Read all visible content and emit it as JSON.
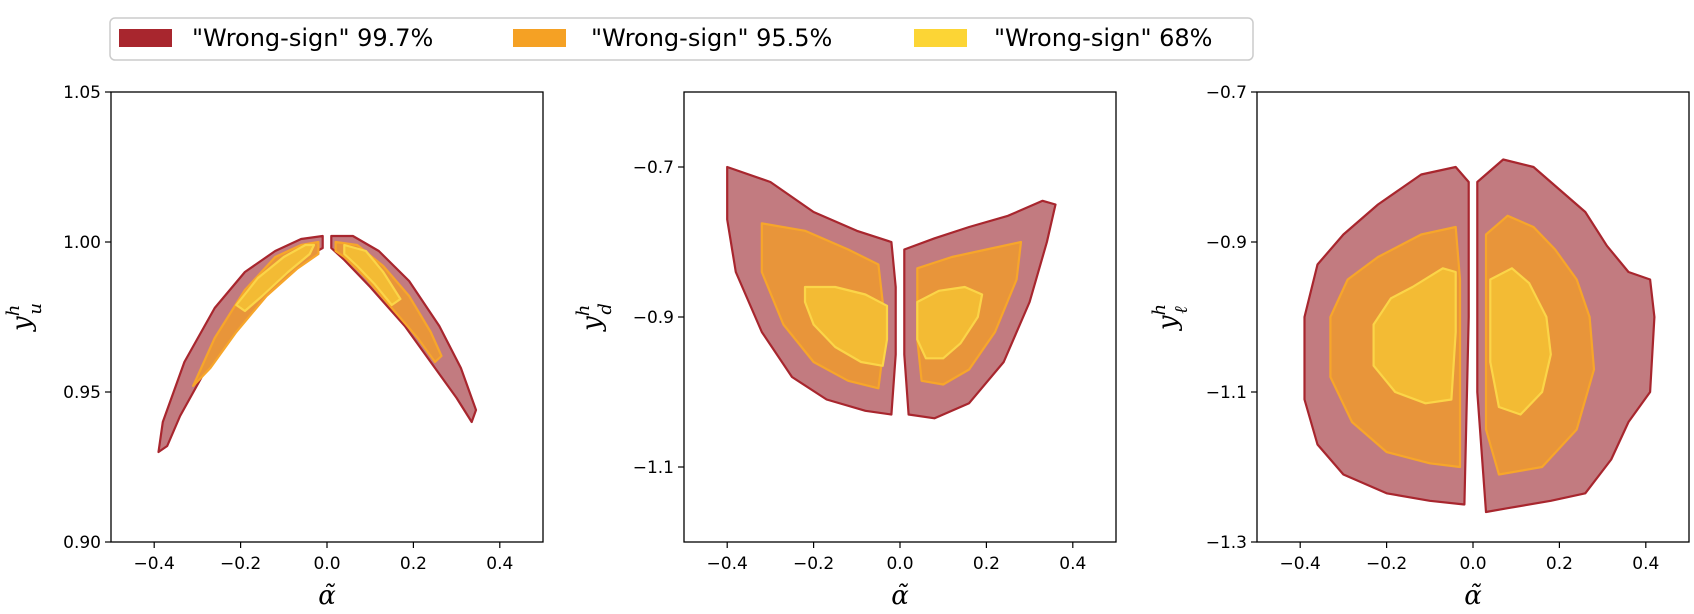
{
  "legend": {
    "placement": "top-center",
    "entries": [
      {
        "label": "\"Wrong-sign\" 99.7%",
        "color": "#a8262e"
      },
      {
        "label": "\"Wrong-sign\" 95.5%",
        "color": "#f5a124"
      },
      {
        "label": "\"Wrong-sign\" 68%",
        "color": "#fcd535"
      }
    ]
  },
  "colors": {
    "fill_997": "#c27b80",
    "edge_997": "#a8262e",
    "fill_955": "#e8953a",
    "edge_955": "#f7a62a",
    "fill_68": "#f3bb34",
    "edge_68": "#fbd548"
  },
  "chart_data": [
    {
      "type": "contour",
      "xlabel": "α̃",
      "ylabel_base": "y",
      "ylabel_sup": "h",
      "ylabel_sub": "u",
      "xlim": [
        -0.5,
        0.5
      ],
      "ylim": [
        0.9,
        1.05
      ],
      "xticks": [
        -0.4,
        -0.2,
        0.0,
        0.2,
        0.4
      ],
      "xtick_labels": [
        "−0.4",
        "−0.2",
        "0.0",
        "0.2",
        "0.4"
      ],
      "yticks": [
        0.9,
        0.95,
        1.0,
        1.05
      ],
      "ytick_labels": [
        "0.90",
        "0.95",
        "1.00",
        "1.05"
      ],
      "regions": [
        {
          "level": "99.7%",
          "polygons": [
            [
              [
                -0.39,
                0.93
              ],
              [
                -0.38,
                0.94
              ],
              [
                -0.33,
                0.96
              ],
              [
                -0.26,
                0.978
              ],
              [
                -0.19,
                0.99
              ],
              [
                -0.12,
                0.997
              ],
              [
                -0.06,
                1.001
              ],
              [
                -0.01,
                1.002
              ],
              [
                -0.01,
                0.998
              ],
              [
                -0.06,
                0.994
              ],
              [
                -0.14,
                0.984
              ],
              [
                -0.22,
                0.97
              ],
              [
                -0.29,
                0.955
              ],
              [
                -0.34,
                0.942
              ],
              [
                -0.37,
                0.932
              ]
            ],
            [
              [
                0.01,
                1.002
              ],
              [
                0.06,
                1.002
              ],
              [
                0.12,
                0.997
              ],
              [
                0.19,
                0.987
              ],
              [
                0.26,
                0.972
              ],
              [
                0.31,
                0.958
              ],
              [
                0.345,
                0.944
              ],
              [
                0.335,
                0.94
              ],
              [
                0.3,
                0.948
              ],
              [
                0.25,
                0.958
              ],
              [
                0.18,
                0.972
              ],
              [
                0.1,
                0.985
              ],
              [
                0.04,
                0.994
              ],
              [
                0.01,
                0.998
              ]
            ]
          ]
        },
        {
          "level": "95.5%",
          "polygons": [
            [
              [
                -0.31,
                0.952
              ],
              [
                -0.26,
                0.968
              ],
              [
                -0.19,
                0.984
              ],
              [
                -0.12,
                0.995
              ],
              [
                -0.06,
                0.999
              ],
              [
                -0.02,
                1.0
              ],
              [
                -0.02,
                0.996
              ],
              [
                -0.07,
                0.991
              ],
              [
                -0.14,
                0.982
              ],
              [
                -0.21,
                0.97
              ],
              [
                -0.27,
                0.958
              ]
            ],
            [
              [
                0.02,
                1.0
              ],
              [
                0.07,
                0.999
              ],
              [
                0.13,
                0.992
              ],
              [
                0.19,
                0.982
              ],
              [
                0.24,
                0.97
              ],
              [
                0.265,
                0.962
              ],
              [
                0.25,
                0.96
              ],
              [
                0.21,
                0.968
              ],
              [
                0.15,
                0.978
              ],
              [
                0.09,
                0.988
              ],
              [
                0.04,
                0.995
              ],
              [
                0.02,
                0.997
              ]
            ]
          ]
        },
        {
          "level": "68%",
          "polygons": [
            [
              [
                -0.21,
                0.979
              ],
              [
                -0.16,
                0.988
              ],
              [
                -0.1,
                0.995
              ],
              [
                -0.05,
                0.999
              ],
              [
                -0.03,
                0.999
              ],
              [
                -0.04,
                0.996
              ],
              [
                -0.09,
                0.99
              ],
              [
                -0.15,
                0.982
              ],
              [
                -0.19,
                0.977
              ]
            ],
            [
              [
                0.04,
                0.999
              ],
              [
                0.09,
                0.997
              ],
              [
                0.13,
                0.99
              ],
              [
                0.17,
                0.981
              ],
              [
                0.15,
                0.979
              ],
              [
                0.11,
                0.986
              ],
              [
                0.07,
                0.992
              ],
              [
                0.04,
                0.996
              ]
            ]
          ]
        }
      ]
    },
    {
      "type": "contour",
      "xlabel": "α̃",
      "ylabel_base": "y",
      "ylabel_sup": "h",
      "ylabel_sub": "d",
      "xlim": [
        -0.5,
        0.5
      ],
      "ylim": [
        -1.2,
        -0.6
      ],
      "xticks": [
        -0.4,
        -0.2,
        0.0,
        0.2,
        0.4
      ],
      "xtick_labels": [
        "−0.4",
        "−0.2",
        "0.0",
        "0.2",
        "0.4"
      ],
      "yticks": [
        -1.1,
        -0.9,
        -0.7
      ],
      "ytick_labels": [
        "−1.1",
        "−0.9",
        "−0.7"
      ],
      "regions": [
        {
          "level": "99.7%",
          "polygons": [
            [
              [
                -0.4,
                -0.7
              ],
              [
                -0.3,
                -0.72
              ],
              [
                -0.2,
                -0.76
              ],
              [
                -0.1,
                -0.785
              ],
              [
                -0.02,
                -0.8
              ],
              [
                -0.01,
                -0.86
              ],
              [
                -0.01,
                -0.95
              ],
              [
                -0.02,
                -1.03
              ],
              [
                -0.08,
                -1.025
              ],
              [
                -0.17,
                -1.01
              ],
              [
                -0.25,
                -0.98
              ],
              [
                -0.32,
                -0.92
              ],
              [
                -0.38,
                -0.84
              ],
              [
                -0.4,
                -0.77
              ]
            ],
            [
              [
                0.01,
                -0.81
              ],
              [
                0.08,
                -0.795
              ],
              [
                0.16,
                -0.78
              ],
              [
                0.25,
                -0.765
              ],
              [
                0.33,
                -0.745
              ],
              [
                0.36,
                -0.75
              ],
              [
                0.34,
                -0.8
              ],
              [
                0.3,
                -0.88
              ],
              [
                0.24,
                -0.96
              ],
              [
                0.16,
                -1.015
              ],
              [
                0.08,
                -1.035
              ],
              [
                0.02,
                -1.03
              ],
              [
                0.01,
                -0.95
              ]
            ]
          ]
        },
        {
          "level": "95.5%",
          "polygons": [
            [
              [
                -0.32,
                -0.775
              ],
              [
                -0.22,
                -0.785
              ],
              [
                -0.12,
                -0.81
              ],
              [
                -0.05,
                -0.83
              ],
              [
                -0.04,
                -0.88
              ],
              [
                -0.04,
                -0.95
              ],
              [
                -0.05,
                -0.995
              ],
              [
                -0.12,
                -0.985
              ],
              [
                -0.2,
                -0.96
              ],
              [
                -0.27,
                -0.91
              ],
              [
                -0.32,
                -0.84
              ]
            ],
            [
              [
                0.04,
                -0.835
              ],
              [
                0.12,
                -0.82
              ],
              [
                0.2,
                -0.81
              ],
              [
                0.28,
                -0.8
              ],
              [
                0.27,
                -0.85
              ],
              [
                0.22,
                -0.92
              ],
              [
                0.16,
                -0.97
              ],
              [
                0.1,
                -0.99
              ],
              [
                0.05,
                -0.985
              ],
              [
                0.04,
                -0.93
              ]
            ]
          ]
        },
        {
          "level": "68%",
          "polygons": [
            [
              [
                -0.22,
                -0.86
              ],
              [
                -0.15,
                -0.86
              ],
              [
                -0.08,
                -0.87
              ],
              [
                -0.03,
                -0.885
              ],
              [
                -0.03,
                -0.93
              ],
              [
                -0.04,
                -0.965
              ],
              [
                -0.09,
                -0.96
              ],
              [
                -0.15,
                -0.94
              ],
              [
                -0.2,
                -0.91
              ],
              [
                -0.22,
                -0.88
              ]
            ],
            [
              [
                0.04,
                -0.88
              ],
              [
                0.09,
                -0.865
              ],
              [
                0.15,
                -0.86
              ],
              [
                0.19,
                -0.87
              ],
              [
                0.18,
                -0.9
              ],
              [
                0.14,
                -0.935
              ],
              [
                0.1,
                -0.955
              ],
              [
                0.06,
                -0.955
              ],
              [
                0.04,
                -0.93
              ]
            ]
          ]
        }
      ]
    },
    {
      "type": "contour",
      "xlabel": "α̃",
      "ylabel_base": "y",
      "ylabel_sup": "h",
      "ylabel_sub": "ℓ",
      "xlim": [
        -0.5,
        0.5
      ],
      "ylim": [
        -1.3,
        -0.7
      ],
      "xticks": [
        -0.4,
        -0.2,
        0.0,
        0.2,
        0.4
      ],
      "xtick_labels": [
        "−0.4",
        "−0.2",
        "0.0",
        "0.2",
        "0.4"
      ],
      "yticks": [
        -1.3,
        -1.1,
        -0.9,
        -0.7
      ],
      "ytick_labels": [
        "−1.3",
        "−1.1",
        "−0.9",
        "−0.7"
      ],
      "regions": [
        {
          "level": "99.7%",
          "polygons": [
            [
              [
                -0.22,
                -0.85
              ],
              [
                -0.12,
                -0.81
              ],
              [
                -0.04,
                -0.8
              ],
              [
                -0.01,
                -0.82
              ],
              [
                -0.01,
                -1.0
              ],
              [
                -0.02,
                -1.25
              ],
              [
                -0.1,
                -1.245
              ],
              [
                -0.2,
                -1.235
              ],
              [
                -0.3,
                -1.21
              ],
              [
                -0.36,
                -1.17
              ],
              [
                -0.39,
                -1.11
              ],
              [
                -0.39,
                -1.0
              ],
              [
                -0.36,
                -0.93
              ],
              [
                -0.3,
                -0.89
              ]
            ],
            [
              [
                0.01,
                -0.82
              ],
              [
                0.07,
                -0.79
              ],
              [
                0.14,
                -0.8
              ],
              [
                0.2,
                -0.83
              ],
              [
                0.26,
                -0.86
              ],
              [
                0.31,
                -0.905
              ],
              [
                0.36,
                -0.94
              ],
              [
                0.41,
                -0.95
              ],
              [
                0.42,
                -1.0
              ],
              [
                0.41,
                -1.1
              ],
              [
                0.36,
                -1.14
              ],
              [
                0.32,
                -1.19
              ],
              [
                0.26,
                -1.235
              ],
              [
                0.18,
                -1.245
              ],
              [
                0.08,
                -1.255
              ],
              [
                0.03,
                -1.26
              ],
              [
                0.01,
                -1.1
              ]
            ]
          ]
        },
        {
          "level": "95.5%",
          "polygons": [
            [
              [
                -0.22,
                -0.92
              ],
              [
                -0.12,
                -0.89
              ],
              [
                -0.04,
                -0.88
              ],
              [
                -0.03,
                -0.95
              ],
              [
                -0.03,
                -1.2
              ],
              [
                -0.1,
                -1.195
              ],
              [
                -0.2,
                -1.18
              ],
              [
                -0.28,
                -1.14
              ],
              [
                -0.33,
                -1.08
              ],
              [
                -0.33,
                -1.0
              ],
              [
                -0.29,
                -0.95
              ]
            ],
            [
              [
                0.03,
                -0.89
              ],
              [
                0.08,
                -0.865
              ],
              [
                0.14,
                -0.88
              ],
              [
                0.19,
                -0.91
              ],
              [
                0.24,
                -0.95
              ],
              [
                0.27,
                -1.0
              ],
              [
                0.28,
                -1.07
              ],
              [
                0.24,
                -1.15
              ],
              [
                0.16,
                -1.2
              ],
              [
                0.06,
                -1.21
              ],
              [
                0.03,
                -1.15
              ]
            ]
          ]
        },
        {
          "level": "68%",
          "polygons": [
            [
              [
                -0.14,
                -0.96
              ],
              [
                -0.07,
                -0.935
              ],
              [
                -0.04,
                -0.94
              ],
              [
                -0.04,
                -1.02
              ],
              [
                -0.05,
                -1.11
              ],
              [
                -0.11,
                -1.115
              ],
              [
                -0.18,
                -1.1
              ],
              [
                -0.23,
                -1.065
              ],
              [
                -0.23,
                -1.01
              ],
              [
                -0.19,
                -0.975
              ]
            ],
            [
              [
                0.04,
                -0.95
              ],
              [
                0.09,
                -0.935
              ],
              [
                0.13,
                -0.955
              ],
              [
                0.17,
                -1.0
              ],
              [
                0.18,
                -1.05
              ],
              [
                0.16,
                -1.1
              ],
              [
                0.11,
                -1.13
              ],
              [
                0.06,
                -1.12
              ],
              [
                0.04,
                -1.06
              ]
            ]
          ]
        }
      ]
    }
  ]
}
